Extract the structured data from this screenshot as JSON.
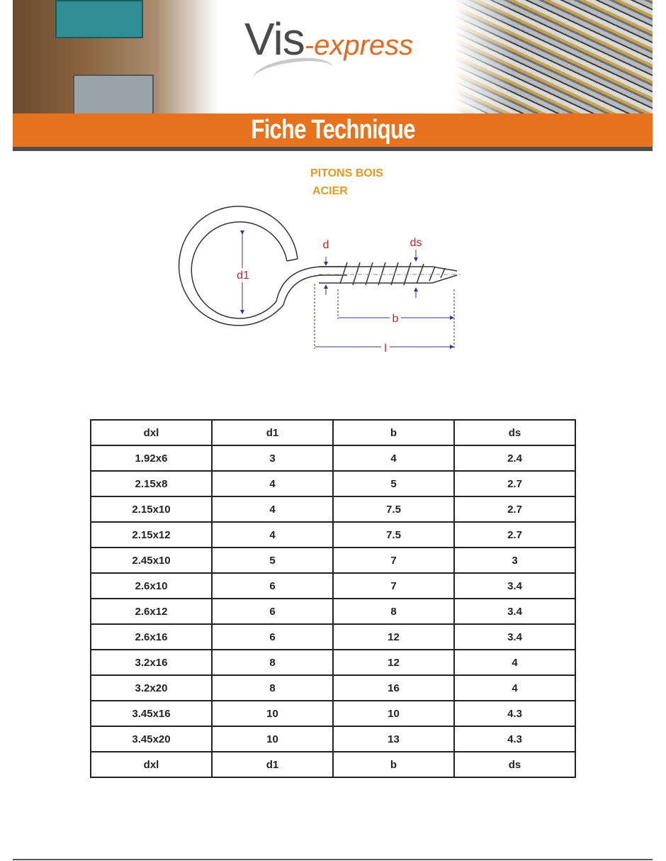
{
  "header": {
    "logo_main": "Vis",
    "logo_suffix": "-express",
    "banner_title": "Fiche Technique",
    "brand_color": "#e8731e"
  },
  "product": {
    "line1": "PITONS BOIS",
    "line2": "ACIER"
  },
  "diagram": {
    "labels": {
      "d1": "d1",
      "d": "d",
      "ds": "ds",
      "b": "b",
      "l": "l"
    }
  },
  "table": {
    "headers": [
      "dxl",
      "d1",
      "b",
      "ds"
    ],
    "rows": [
      [
        "1.92x6",
        "3",
        "4",
        "2.4"
      ],
      [
        "2.15x8",
        "4",
        "5",
        "2.7"
      ],
      [
        "2.15x10",
        "4",
        "7.5",
        "2.7"
      ],
      [
        "2.15x12",
        "4",
        "7.5",
        "2.7"
      ],
      [
        "2.45x10",
        "5",
        "7",
        "3"
      ],
      [
        "2.6x10",
        "6",
        "7",
        "3.4"
      ],
      [
        "2.6x12",
        "6",
        "8",
        "3.4"
      ],
      [
        "2.6x16",
        "6",
        "12",
        "3.4"
      ],
      [
        "3.2x16",
        "8",
        "12",
        "4"
      ],
      [
        "3.2x20",
        "8",
        "16",
        "4"
      ],
      [
        "3.45x16",
        "10",
        "10",
        "4.3"
      ],
      [
        "3.45x20",
        "10",
        "13",
        "4.3"
      ]
    ],
    "footer": [
      "dxl",
      "d1",
      "b",
      "ds"
    ]
  }
}
